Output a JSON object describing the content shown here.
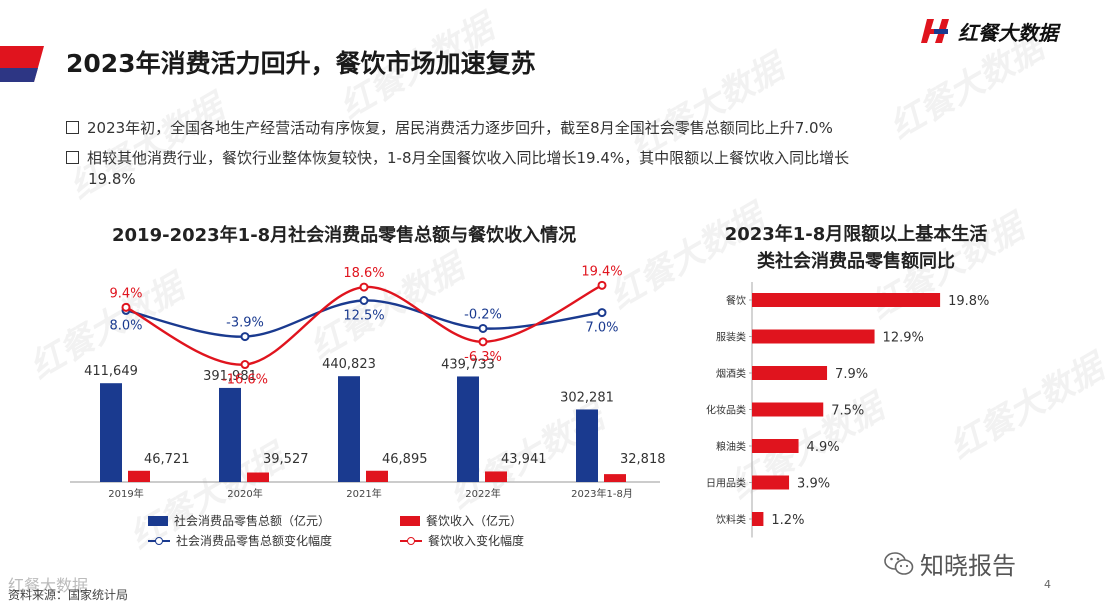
{
  "title": "2023年消费活力回升，餐饮市场加速复苏",
  "brand": {
    "name": "红餐大数据",
    "accent": "#e0141e",
    "navy": "#1a3a8f"
  },
  "bullets": [
    {
      "text": "2023年初，全国各地生产经营活动有序恢复，居民消费活力逐步回升，截至8月全国社会零售总额同比上升7.0%"
    },
    {
      "text": "相较其他消费行业，餐饮行业整体恢复较快，1-8月全国餐饮收入同比增长19.4%，其中限额以上餐饮收入同比增长",
      "cont": "19.8%"
    }
  ],
  "watermark": "红餐大数据",
  "footer": {
    "wm_text": "红餐大数据",
    "source": "资料来源：国家统计局",
    "wechat": "知晓报告",
    "page": "4"
  },
  "chart_data": [
    {
      "type": "bar+line",
      "title": "2019-2023年1-8月社会消费品零售总额与餐饮收入情况",
      "categories": [
        "2019年",
        "2020年",
        "2021年",
        "2022年",
        "2023年1-8月"
      ],
      "series": [
        {
          "name": "社会消费品零售总额（亿元）",
          "kind": "bar",
          "values": [
            411649,
            391981,
            440823,
            439733,
            302281
          ],
          "labels": [
            "411,649",
            "391,981",
            "440,823",
            "439,733",
            "302,281"
          ],
          "color": "#1a3a8f"
        },
        {
          "name": "餐饮收入（亿元）",
          "kind": "bar",
          "values": [
            46721,
            39527,
            46895,
            43941,
            32818
          ],
          "labels": [
            "46,721",
            "39,527",
            "46,895",
            "43,941",
            "32,818"
          ],
          "color": "#e0141e"
        },
        {
          "name": "社会消费品零售总额变化幅度",
          "kind": "line",
          "values": [
            8.0,
            -3.9,
            12.5,
            -0.2,
            7.0
          ],
          "labels": [
            "8.0%",
            "-3.9%",
            "12.5%",
            "-0.2%",
            "7.0%"
          ],
          "color": "#1a3a8f"
        },
        {
          "name": "餐饮收入变化幅度",
          "kind": "line",
          "values": [
            9.4,
            -16.6,
            18.6,
            -6.3,
            19.4
          ],
          "labels": [
            "9.4%",
            "-16.6%",
            "18.6%",
            "-6.3%",
            "19.4%"
          ],
          "color": "#e0141e"
        }
      ],
      "bar_ylim": [
        0,
        500000
      ],
      "line_ylim": [
        -20,
        20
      ]
    },
    {
      "type": "bar",
      "orientation": "horizontal",
      "title_lines": [
        "2023年1-8月限额以上基本生活",
        "类社会消费品零售额同比"
      ],
      "categories": [
        "餐饮",
        "服装类",
        "烟酒类",
        "化妆品类",
        "粮油类",
        "日用品类",
        "饮料类"
      ],
      "values": [
        19.8,
        12.9,
        7.9,
        7.5,
        4.9,
        3.9,
        1.2
      ],
      "labels": [
        "19.8%",
        "12.9%",
        "7.9%",
        "7.5%",
        "4.9%",
        "3.9%",
        "1.2%"
      ],
      "color": "#e0141e",
      "xlim": [
        0,
        20
      ]
    }
  ]
}
